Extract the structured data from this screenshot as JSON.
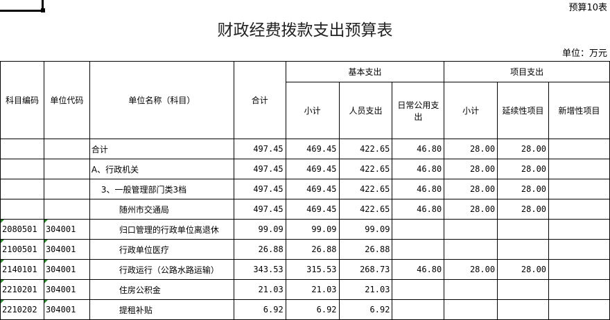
{
  "table_no": "预算10表",
  "title": "财政经费拨款支出预算表",
  "unit": "单位：万元",
  "headers": {
    "subject_code": "科目编码",
    "unit_code": "单位代码",
    "unit_name": "单位名称（科目）",
    "total": "合计",
    "basic": "基本支出",
    "project": "项目支出",
    "basic_sub": "小计",
    "personnel": "人员支出",
    "daily": "日常公用支出",
    "project_sub": "小计",
    "continuing": "延续性项目",
    "new": "新增性项目"
  },
  "rows": [
    {
      "code": "",
      "unit": "",
      "name": "合计",
      "indent": 0,
      "total": "497.45",
      "basic_sub": "469.45",
      "personnel": "422.65",
      "daily": "46.80",
      "proj_sub": "28.00",
      "continuing": "28.00",
      "new": ""
    },
    {
      "code": "",
      "unit": "",
      "name": "A、行政机关",
      "indent": 0,
      "total": "497.45",
      "basic_sub": "469.45",
      "personnel": "422.65",
      "daily": "46.80",
      "proj_sub": "28.00",
      "continuing": "28.00",
      "new": ""
    },
    {
      "code": "",
      "unit": "",
      "name": "3、一般管理部门类3档",
      "indent": 1,
      "total": "497.45",
      "basic_sub": "469.45",
      "personnel": "422.65",
      "daily": "46.80",
      "proj_sub": "28.00",
      "continuing": "28.00",
      "new": ""
    },
    {
      "code": "",
      "unit": "",
      "name": "随州市交通局",
      "indent": 2,
      "total": "497.45",
      "basic_sub": "469.45",
      "personnel": "422.65",
      "daily": "46.80",
      "proj_sub": "28.00",
      "continuing": "28.00",
      "new": ""
    },
    {
      "code": "2080501",
      "unit": "304001",
      "name": "归口管理的行政单位离退休",
      "indent": 3,
      "total": "99.09",
      "basic_sub": "99.09",
      "personnel": "99.09",
      "daily": "",
      "proj_sub": "",
      "continuing": "",
      "new": ""
    },
    {
      "code": "2100501",
      "unit": "304001",
      "name": "行政单位医疗",
      "indent": 3,
      "total": "26.88",
      "basic_sub": "26.88",
      "personnel": "26.88",
      "daily": "",
      "proj_sub": "",
      "continuing": "",
      "new": ""
    },
    {
      "code": "2140101",
      "unit": "304001",
      "name": "行政运行（公路水路运输）",
      "indent": 3,
      "total": "343.53",
      "basic_sub": "315.53",
      "personnel": "268.73",
      "daily": "46.80",
      "proj_sub": "28.00",
      "continuing": "28.00",
      "new": ""
    },
    {
      "code": "2210201",
      "unit": "304001",
      "name": "住房公积金",
      "indent": 3,
      "total": "21.03",
      "basic_sub": "21.03",
      "personnel": "21.03",
      "daily": "",
      "proj_sub": "",
      "continuing": "",
      "new": ""
    },
    {
      "code": "2210202",
      "unit": "304001",
      "name": "提租补贴",
      "indent": 3,
      "total": "6.92",
      "basic_sub": "6.92",
      "personnel": "6.92",
      "daily": "",
      "proj_sub": "",
      "continuing": "",
      "new": ""
    }
  ]
}
